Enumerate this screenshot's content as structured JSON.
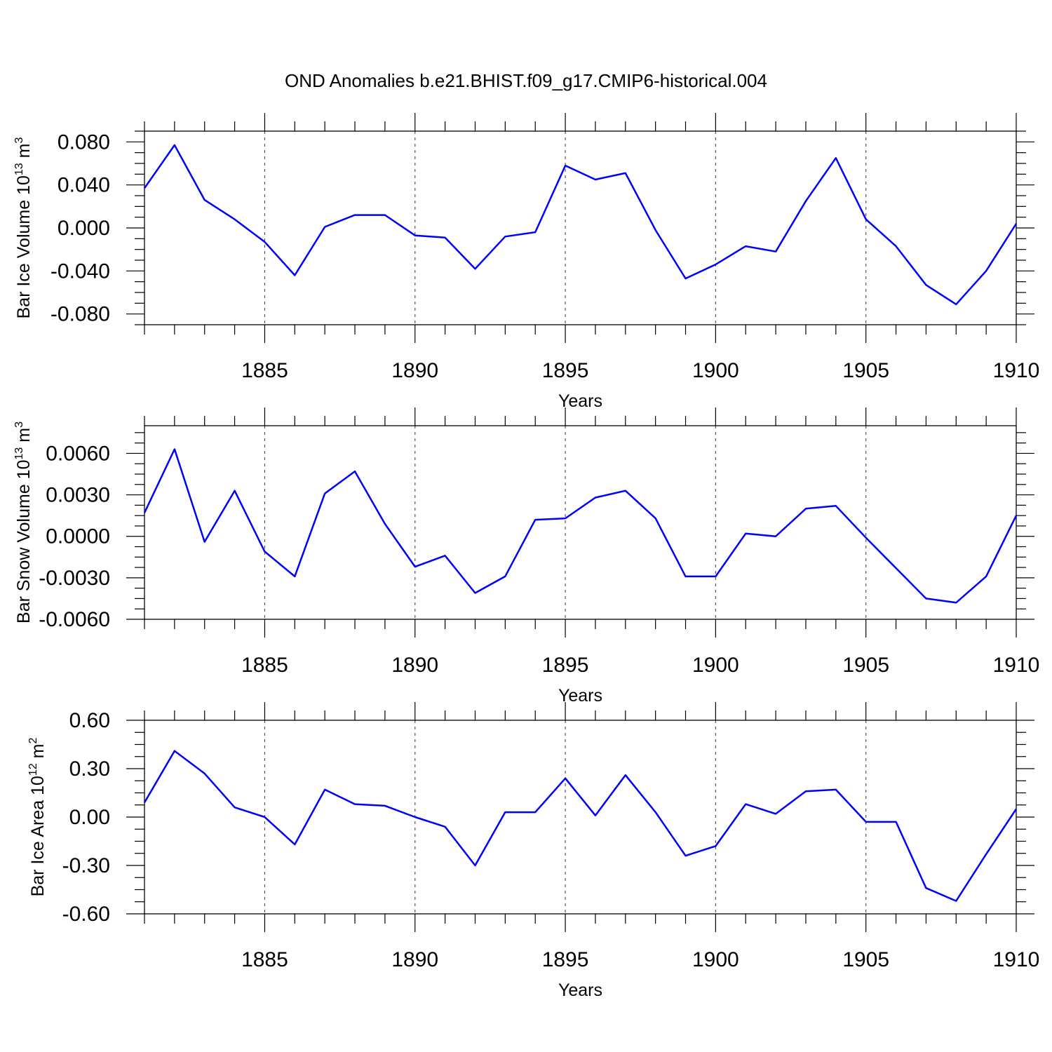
{
  "title": "OND Anomalies b.e21.BHIST.f09_g17.CMIP6-historical.004",
  "colors": {
    "series": "#0000ff",
    "axes": "#000000",
    "grid": "#555555"
  },
  "chart_data": [
    {
      "type": "line",
      "ylabel": {
        "text": "Bar Ice Volume 10",
        "sup": "13",
        "unit": " m",
        "unit_sup": "3"
      },
      "xlabel": "Years",
      "xlim": [
        1881,
        1910
      ],
      "ylim": [
        -0.09,
        0.09
      ],
      "yticks": [
        -0.08,
        -0.04,
        0.0,
        0.04,
        0.08
      ],
      "ytick_labels": [
        "-0.080",
        "-0.040",
        "0.000",
        "0.040",
        "0.080"
      ],
      "xticks": [
        1885,
        1890,
        1895,
        1900,
        1905,
        1910
      ],
      "xtick_labels": [
        "1885",
        "1890",
        "1895",
        "1900",
        "1905",
        "1910"
      ],
      "grid": "vertical dashed at major x ticks",
      "x": [
        1881,
        1882,
        1883,
        1884,
        1885,
        1886,
        1887,
        1888,
        1889,
        1890,
        1891,
        1892,
        1893,
        1894,
        1895,
        1896,
        1897,
        1898,
        1899,
        1900,
        1901,
        1902,
        1903,
        1904,
        1905,
        1906,
        1907,
        1908,
        1909,
        1910
      ],
      "values": [
        0.037,
        0.077,
        0.026,
        0.008,
        -0.013,
        -0.044,
        0.001,
        0.012,
        0.012,
        -0.007,
        -0.009,
        -0.038,
        -0.008,
        -0.004,
        0.058,
        0.045,
        0.051,
        -0.002,
        -0.047,
        -0.034,
        -0.017,
        -0.022,
        0.025,
        0.065,
        0.008,
        -0.017,
        -0.053,
        -0.071,
        -0.04,
        0.004
      ]
    },
    {
      "type": "line",
      "ylabel": {
        "text": "Bar Snow Volume 10",
        "sup": "13",
        "unit": " m",
        "unit_sup": "3"
      },
      "xlabel": "Years",
      "xlim": [
        1881,
        1910
      ],
      "ylim": [
        -0.006,
        0.008
      ],
      "yticks": [
        -0.006,
        -0.003,
        0.0,
        0.003,
        0.006
      ],
      "ytick_labels": [
        "-0.0060",
        "-0.0030",
        "0.0000",
        "0.0030",
        "0.0060"
      ],
      "xticks": [
        1885,
        1890,
        1895,
        1900,
        1905,
        1910
      ],
      "xtick_labels": [
        "1885",
        "1890",
        "1895",
        "1900",
        "1905",
        "1910"
      ],
      "grid": "vertical dashed at major x ticks",
      "x": [
        1881,
        1882,
        1883,
        1884,
        1885,
        1886,
        1887,
        1888,
        1889,
        1890,
        1891,
        1892,
        1893,
        1894,
        1895,
        1896,
        1897,
        1898,
        1899,
        1900,
        1901,
        1902,
        1903,
        1904,
        1905,
        1906,
        1907,
        1908,
        1909,
        1910
      ],
      "values": [
        0.0017,
        0.0063,
        -0.0004,
        0.0033,
        -0.0011,
        -0.0029,
        0.0031,
        0.0047,
        0.0009,
        -0.0022,
        -0.0014,
        -0.0041,
        -0.0029,
        0.0012,
        0.0013,
        0.0028,
        0.0033,
        0.0013,
        -0.0029,
        -0.0029,
        0.0002,
        0.0,
        0.002,
        0.0022,
        -0.0001,
        -0.0023,
        -0.0045,
        -0.0048,
        -0.0029,
        0.0015
      ]
    },
    {
      "type": "line",
      "ylabel": {
        "text": "Bar Ice Area 10",
        "sup": "12",
        "unit": " m",
        "unit_sup": "2"
      },
      "xlabel": "Years",
      "xlim": [
        1881,
        1910
      ],
      "ylim": [
        -0.6,
        0.6
      ],
      "yticks": [
        -0.6,
        -0.3,
        0.0,
        0.3,
        0.6
      ],
      "ytick_labels": [
        "-0.60",
        "-0.30",
        "0.00",
        "0.30",
        "0.60"
      ],
      "xticks": [
        1885,
        1890,
        1895,
        1900,
        1905,
        1910
      ],
      "xtick_labels": [
        "1885",
        "1890",
        "1895",
        "1900",
        "1905",
        "1910"
      ],
      "grid": "vertical dashed at major x ticks",
      "x": [
        1881,
        1882,
        1883,
        1884,
        1885,
        1886,
        1887,
        1888,
        1889,
        1890,
        1891,
        1892,
        1893,
        1894,
        1895,
        1896,
        1897,
        1898,
        1899,
        1900,
        1901,
        1902,
        1903,
        1904,
        1905,
        1906,
        1907,
        1908,
        1909,
        1910
      ],
      "values": [
        0.09,
        0.41,
        0.27,
        0.06,
        0.0,
        -0.17,
        0.17,
        0.08,
        0.07,
        0.0,
        -0.06,
        -0.3,
        0.03,
        0.03,
        0.24,
        0.01,
        0.26,
        0.03,
        -0.24,
        -0.18,
        0.08,
        0.02,
        0.16,
        0.17,
        -0.03,
        -0.03,
        -0.44,
        -0.52,
        -0.23,
        0.05
      ]
    }
  ]
}
